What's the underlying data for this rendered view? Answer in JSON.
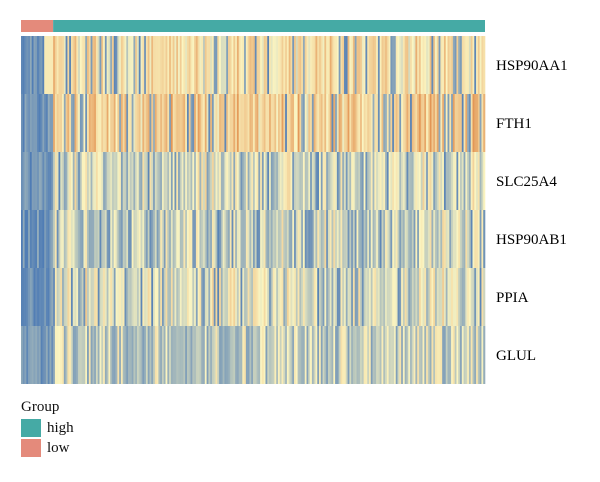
{
  "chart_data": {
    "type": "heatmap",
    "title": "",
    "genes": [
      "HSP90AA1",
      "FTH1",
      "SLC25A4",
      "HSP90AB1",
      "PPIA",
      "GLUL"
    ],
    "gene_mean_expression": [
      0.62,
      0.72,
      0.38,
      0.34,
      0.4,
      0.06
    ],
    "sample_count": 260,
    "group_annotation": {
      "label": "Group",
      "order": [
        "low",
        "high"
      ],
      "sample_counts": {
        "low": 18,
        "high": 242
      }
    },
    "low_group_tendency": "lower expression for all genes",
    "color_scale": {
      "low": "#4575b4",
      "mid": "#fbf5c1",
      "high": "#e08a47"
    },
    "group_colors": {
      "high": "#45aaa5",
      "low": "#e48a7b"
    }
  },
  "legend": {
    "title": "Group",
    "items": [
      {
        "label": "high",
        "color": "#45aaa5"
      },
      {
        "label": "low",
        "color": "#e48a7b"
      }
    ]
  }
}
